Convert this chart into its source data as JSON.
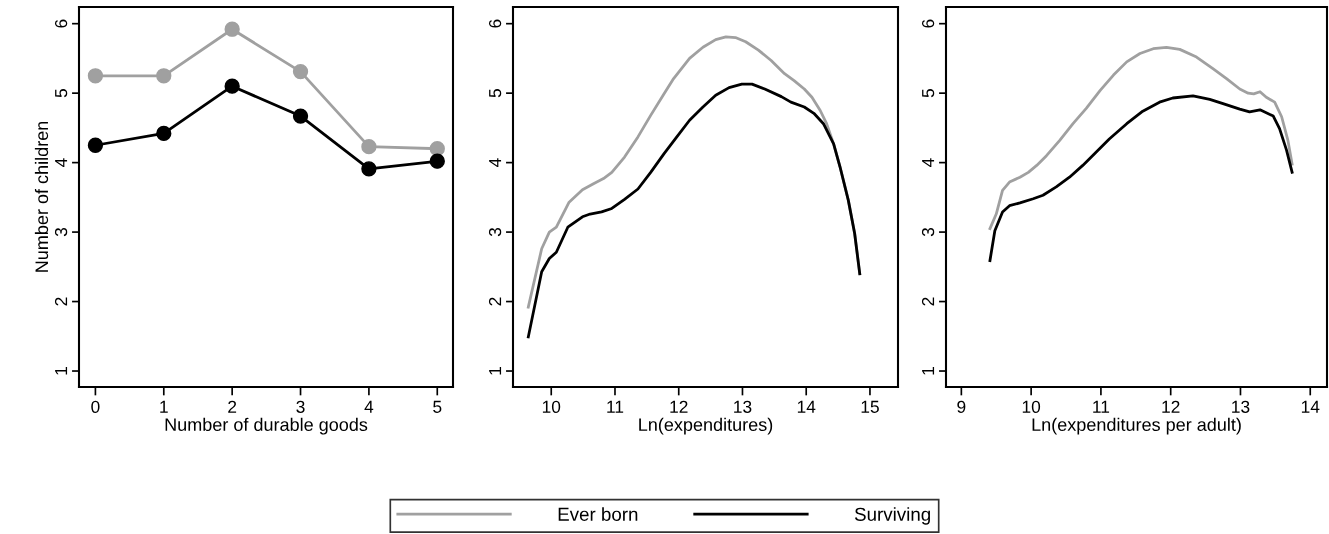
{
  "chart_data": [
    {
      "type": "line",
      "xlabel": "Number of durable goods",
      "ylabel": "Number of children",
      "x": [
        0,
        1,
        2,
        3,
        4,
        5
      ],
      "xlim": [
        -0.24,
        5.23
      ],
      "xticks": [
        0,
        1,
        2,
        3,
        4,
        5
      ],
      "ylim": [
        0.77,
        6.24
      ],
      "yticks": [
        1,
        2,
        3,
        4,
        5,
        6
      ],
      "marker": "circle",
      "grid": false,
      "legend": "bottom",
      "series": [
        {
          "name": "Ever born",
          "color": "#a0a0a0",
          "values": [
            5.25,
            5.25,
            5.92,
            5.31,
            4.23,
            4.2
          ]
        },
        {
          "name": "Surviving",
          "color": "#000000",
          "values": [
            4.25,
            4.42,
            5.1,
            4.67,
            3.91,
            4.02
          ]
        }
      ]
    },
    {
      "type": "line",
      "xlabel": "Ln(expenditures)",
      "xlim": [
        9.4,
        15.44
      ],
      "xticks": [
        10,
        11,
        12,
        13,
        14,
        15
      ],
      "ylim": [
        0.77,
        6.24
      ],
      "yticks": [
        1,
        2,
        3,
        4,
        5,
        6
      ],
      "grid": false,
      "series": [
        {
          "color": "#a0a0a0",
          "x": [
            9.64,
            9.85,
            9.97,
            10.08,
            10.28,
            10.49,
            10.67,
            10.82,
            10.95,
            11.15,
            11.36,
            11.56,
            11.77,
            11.92,
            12.17,
            12.38,
            12.58,
            12.74,
            12.89,
            13.05,
            13.25,
            13.45,
            13.66,
            13.81,
            13.97,
            14.09,
            14.22,
            14.32,
            14.43,
            14.53,
            14.66,
            14.76,
            14.84
          ],
          "values": [
            1.92,
            2.76,
            3.0,
            3.07,
            3.43,
            3.61,
            3.7,
            3.77,
            3.86,
            4.08,
            4.37,
            4.68,
            4.99,
            5.21,
            5.5,
            5.66,
            5.77,
            5.81,
            5.8,
            5.74,
            5.62,
            5.47,
            5.28,
            5.18,
            5.06,
            4.94,
            4.75,
            4.56,
            4.27,
            3.94,
            3.46,
            2.98,
            2.4
          ]
        },
        {
          "color": "#000000",
          "x": [
            9.64,
            9.85,
            9.97,
            10.08,
            10.26,
            10.49,
            10.61,
            10.79,
            10.95,
            11.15,
            11.36,
            11.56,
            11.77,
            11.97,
            12.17,
            12.38,
            12.58,
            12.79,
            12.99,
            13.15,
            13.35,
            13.61,
            13.76,
            13.97,
            14.12,
            14.27,
            14.43,
            14.53,
            14.66,
            14.76,
            14.84
          ],
          "values": [
            1.49,
            2.43,
            2.62,
            2.71,
            3.07,
            3.22,
            3.26,
            3.29,
            3.34,
            3.47,
            3.62,
            3.86,
            4.13,
            4.37,
            4.61,
            4.8,
            4.97,
            5.08,
            5.13,
            5.13,
            5.06,
            4.95,
            4.87,
            4.8,
            4.71,
            4.56,
            4.27,
            3.94,
            3.46,
            2.98,
            2.4
          ]
        }
      ]
    },
    {
      "type": "line",
      "xlabel": "Ln(expenditures per adult)",
      "xlim": [
        8.78,
        14.24
      ],
      "xticks": [
        9,
        10,
        11,
        12,
        13,
        14
      ],
      "ylim": [
        0.77,
        6.24
      ],
      "yticks": [
        1,
        2,
        3,
        4,
        5,
        6
      ],
      "grid": false,
      "series": [
        {
          "color": "#a0a0a0",
          "x": [
            9.41,
            9.5,
            9.59,
            9.69,
            9.84,
            9.96,
            10.08,
            10.22,
            10.41,
            10.6,
            10.79,
            10.99,
            11.18,
            11.37,
            11.56,
            11.75,
            11.94,
            12.13,
            12.37,
            12.61,
            12.8,
            12.99,
            13.11,
            13.19,
            13.28,
            13.37,
            13.49,
            13.59,
            13.68,
            13.74
          ],
          "values": [
            3.05,
            3.26,
            3.6,
            3.72,
            3.79,
            3.86,
            3.96,
            4.1,
            4.32,
            4.56,
            4.78,
            5.04,
            5.26,
            5.45,
            5.57,
            5.64,
            5.66,
            5.63,
            5.52,
            5.35,
            5.21,
            5.06,
            5.0,
            4.99,
            5.02,
            4.94,
            4.87,
            4.66,
            4.32,
            3.98
          ]
        },
        {
          "color": "#000000",
          "x": [
            9.41,
            9.48,
            9.59,
            9.69,
            9.84,
            10.03,
            10.17,
            10.36,
            10.55,
            10.74,
            10.93,
            11.12,
            11.37,
            11.6,
            11.84,
            12.03,
            12.32,
            12.56,
            12.75,
            12.99,
            13.13,
            13.28,
            13.47,
            13.56,
            13.66,
            13.74
          ],
          "values": [
            2.59,
            3.02,
            3.29,
            3.38,
            3.42,
            3.48,
            3.53,
            3.65,
            3.79,
            3.96,
            4.15,
            4.34,
            4.56,
            4.74,
            4.87,
            4.93,
            4.96,
            4.91,
            4.85,
            4.77,
            4.73,
            4.76,
            4.67,
            4.49,
            4.18,
            3.86
          ]
        }
      ]
    }
  ]
}
